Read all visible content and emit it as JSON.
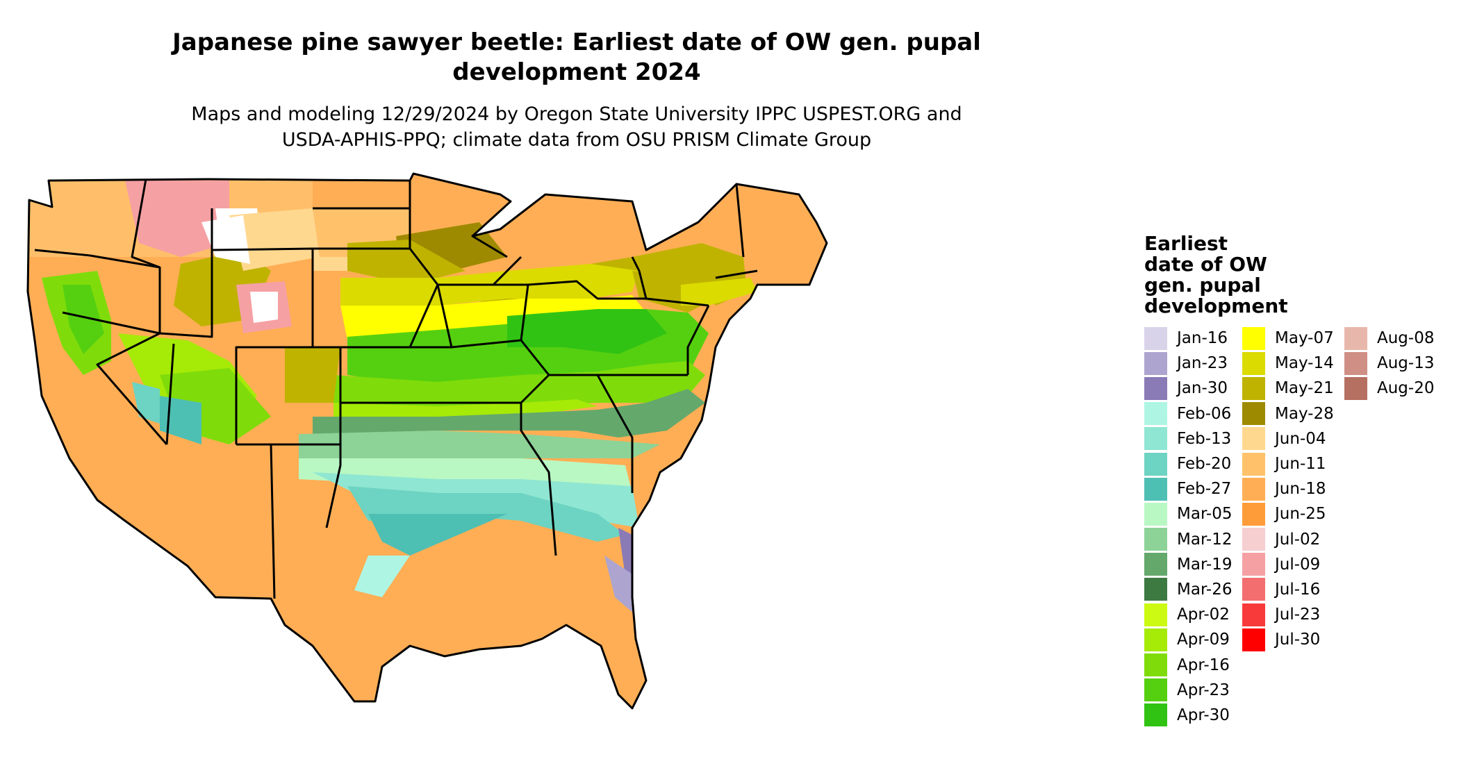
{
  "title_line1": "Japanese pine sawyer beetle: Earliest date of OW gen. pupal",
  "title_line2": "development 2024",
  "subtitle_line1": "Maps and modeling 12/29/2024 by Oregon State University IPPC USPEST.ORG and",
  "subtitle_line2": "USDA-APHIS-PPQ; climate data from OSU PRISM Climate Group",
  "legend": {
    "title_lines": [
      "Earliest",
      "date of OW",
      "gen. pupal",
      "development"
    ],
    "items": [
      {
        "label": "Jan-16",
        "color": "#d9d3ea"
      },
      {
        "label": "Jan-23",
        "color": "#ada5cf"
      },
      {
        "label": "Jan-30",
        "color": "#8a7bb6"
      },
      {
        "label": "Feb-06",
        "color": "#aef5e3"
      },
      {
        "label": "Feb-13",
        "color": "#8fe6d2"
      },
      {
        "label": "Feb-20",
        "color": "#6dd3c2"
      },
      {
        "label": "Feb-27",
        "color": "#4ebfb3"
      },
      {
        "label": "Mar-05",
        "color": "#b9f8c3"
      },
      {
        "label": "Mar-12",
        "color": "#8dd297"
      },
      {
        "label": "Mar-19",
        "color": "#64a86c"
      },
      {
        "label": "Mar-26",
        "color": "#3d7a42"
      },
      {
        "label": "Apr-02",
        "color": "#cdfa12"
      },
      {
        "label": "Apr-09",
        "color": "#a6ea08"
      },
      {
        "label": "Apr-16",
        "color": "#7fdc0a"
      },
      {
        "label": "Apr-23",
        "color": "#55d010"
      },
      {
        "label": "Apr-30",
        "color": "#31c314"
      },
      {
        "label": "May-07",
        "color": "#ffff00"
      },
      {
        "label": "May-14",
        "color": "#dbdb00"
      },
      {
        "label": "May-21",
        "color": "#bfb300"
      },
      {
        "label": "May-28",
        "color": "#9e8a00"
      },
      {
        "label": "Jun-04",
        "color": "#ffd890"
      },
      {
        "label": "Jun-11",
        "color": "#ffc26b"
      },
      {
        "label": "Jun-18",
        "color": "#ffae55"
      },
      {
        "label": "Jun-25",
        "color": "#ff9c3a"
      },
      {
        "label": "Jul-02",
        "color": "#f6cfd0"
      },
      {
        "label": "Jul-09",
        "color": "#f5a0a3"
      },
      {
        "label": "Jul-16",
        "color": "#f36f6f"
      },
      {
        "label": "Jul-23",
        "color": "#f83a3a"
      },
      {
        "label": "Jul-30",
        "color": "#ff0000"
      },
      {
        "label": "Aug-08",
        "color": "#e8b7ab"
      },
      {
        "label": "Aug-13",
        "color": "#cf8f85"
      },
      {
        "label": "Aug-20",
        "color": "#b57062"
      }
    ]
  }
}
